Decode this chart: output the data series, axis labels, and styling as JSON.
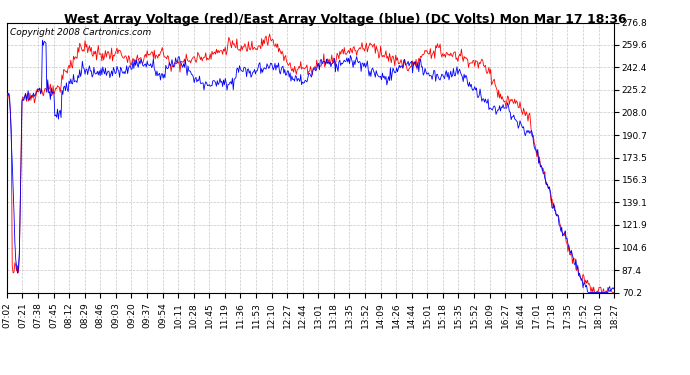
{
  "title": "West Array Voltage (red)/East Array Voltage (blue) (DC Volts) Mon Mar 17 18:36",
  "copyright": "Copyright 2008 Cartronics.com",
  "bg_color": "#ffffff",
  "plot_bg_color": "#ffffff",
  "grid_color": "#c8c8c8",
  "red_color": "#ff0000",
  "blue_color": "#0000ff",
  "ylim": [
    70.2,
    276.8
  ],
  "yticks": [
    70.2,
    87.4,
    104.6,
    121.9,
    139.1,
    156.3,
    173.5,
    190.7,
    208.0,
    225.2,
    242.4,
    259.6,
    276.8
  ],
  "xtick_labels": [
    "07:02",
    "07:21",
    "07:38",
    "07:45",
    "08:12",
    "08:29",
    "08:46",
    "09:03",
    "09:20",
    "09:37",
    "09:54",
    "10:11",
    "10:28",
    "10:45",
    "11:19",
    "11:36",
    "11:53",
    "12:10",
    "12:27",
    "12:44",
    "13:01",
    "13:18",
    "13:35",
    "13:52",
    "14:09",
    "14:26",
    "14:44",
    "15:01",
    "15:18",
    "15:35",
    "15:52",
    "16:09",
    "16:27",
    "16:44",
    "17:01",
    "17:18",
    "17:35",
    "17:52",
    "18:10",
    "18:27"
  ],
  "title_fontsize": 9,
  "copyright_fontsize": 6.5,
  "tick_fontsize": 6.5,
  "n_points": 685
}
